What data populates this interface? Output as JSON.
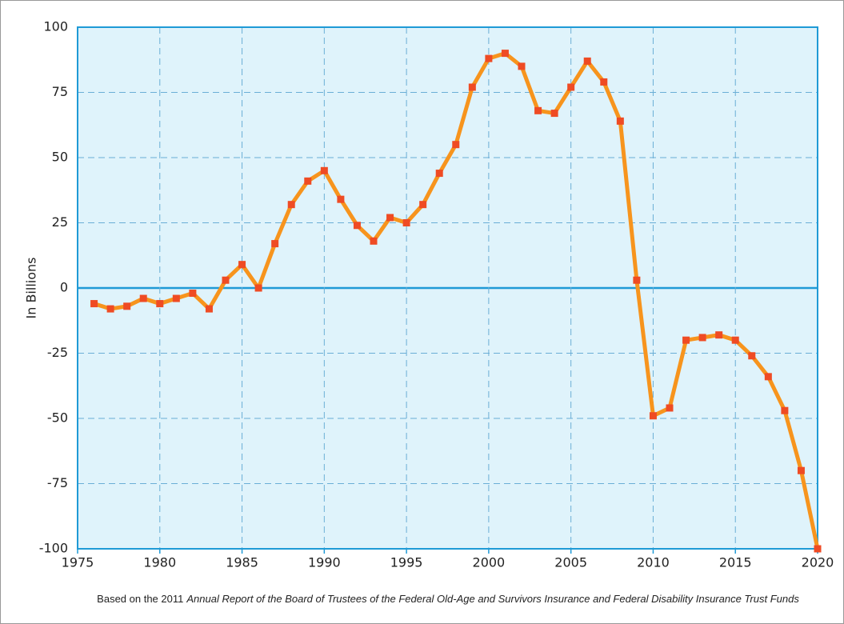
{
  "chart_data": {
    "type": "line",
    "y_label": "In Billions",
    "caption": {
      "prefix": "Based on the 2011",
      "italic": "Annual Report of the Board of Trustees of the Federal Old-Age and Survivors Insurance and Federal Disability Insurance Trust Funds"
    },
    "x": [
      1976,
      1977,
      1978,
      1979,
      1980,
      1981,
      1982,
      1983,
      1984,
      1985,
      1986,
      1987,
      1988,
      1989,
      1990,
      1991,
      1992,
      1993,
      1994,
      1995,
      1996,
      1997,
      1998,
      1999,
      2000,
      2001,
      2002,
      2003,
      2004,
      2005,
      2006,
      2007,
      2008,
      2009,
      2010,
      2011,
      2012,
      2013,
      2014,
      2015,
      2016,
      2017,
      2018,
      2019,
      2020
    ],
    "series": [
      {
        "color": "#f7941d",
        "marker_color": "#ef4b24",
        "values": [
          -6,
          -8,
          -7,
          -4,
          -6,
          -4,
          -2,
          -8,
          3,
          9,
          0,
          17,
          32,
          41,
          45,
          34,
          24,
          18,
          27,
          25,
          32,
          44,
          55,
          77,
          88,
          90,
          85,
          68,
          67,
          77,
          87,
          79,
          64,
          3,
          -49,
          -46,
          -20,
          -19,
          -18,
          -20,
          -26,
          -34,
          -47,
          -70,
          -100
        ]
      }
    ],
    "xlim": [
      1975,
      2020
    ],
    "xticks": [
      1975,
      1980,
      1985,
      1990,
      1995,
      2000,
      2005,
      2010,
      2015,
      2020
    ],
    "ylim": [
      -100,
      100
    ],
    "yticks": [
      -100,
      -75,
      -50,
      -25,
      0,
      25,
      50,
      75,
      100
    ],
    "grid": true,
    "plot_background": "#dff3fb",
    "grid_color": "#6aaed6",
    "zero_line_color": "#1f9ad6"
  }
}
